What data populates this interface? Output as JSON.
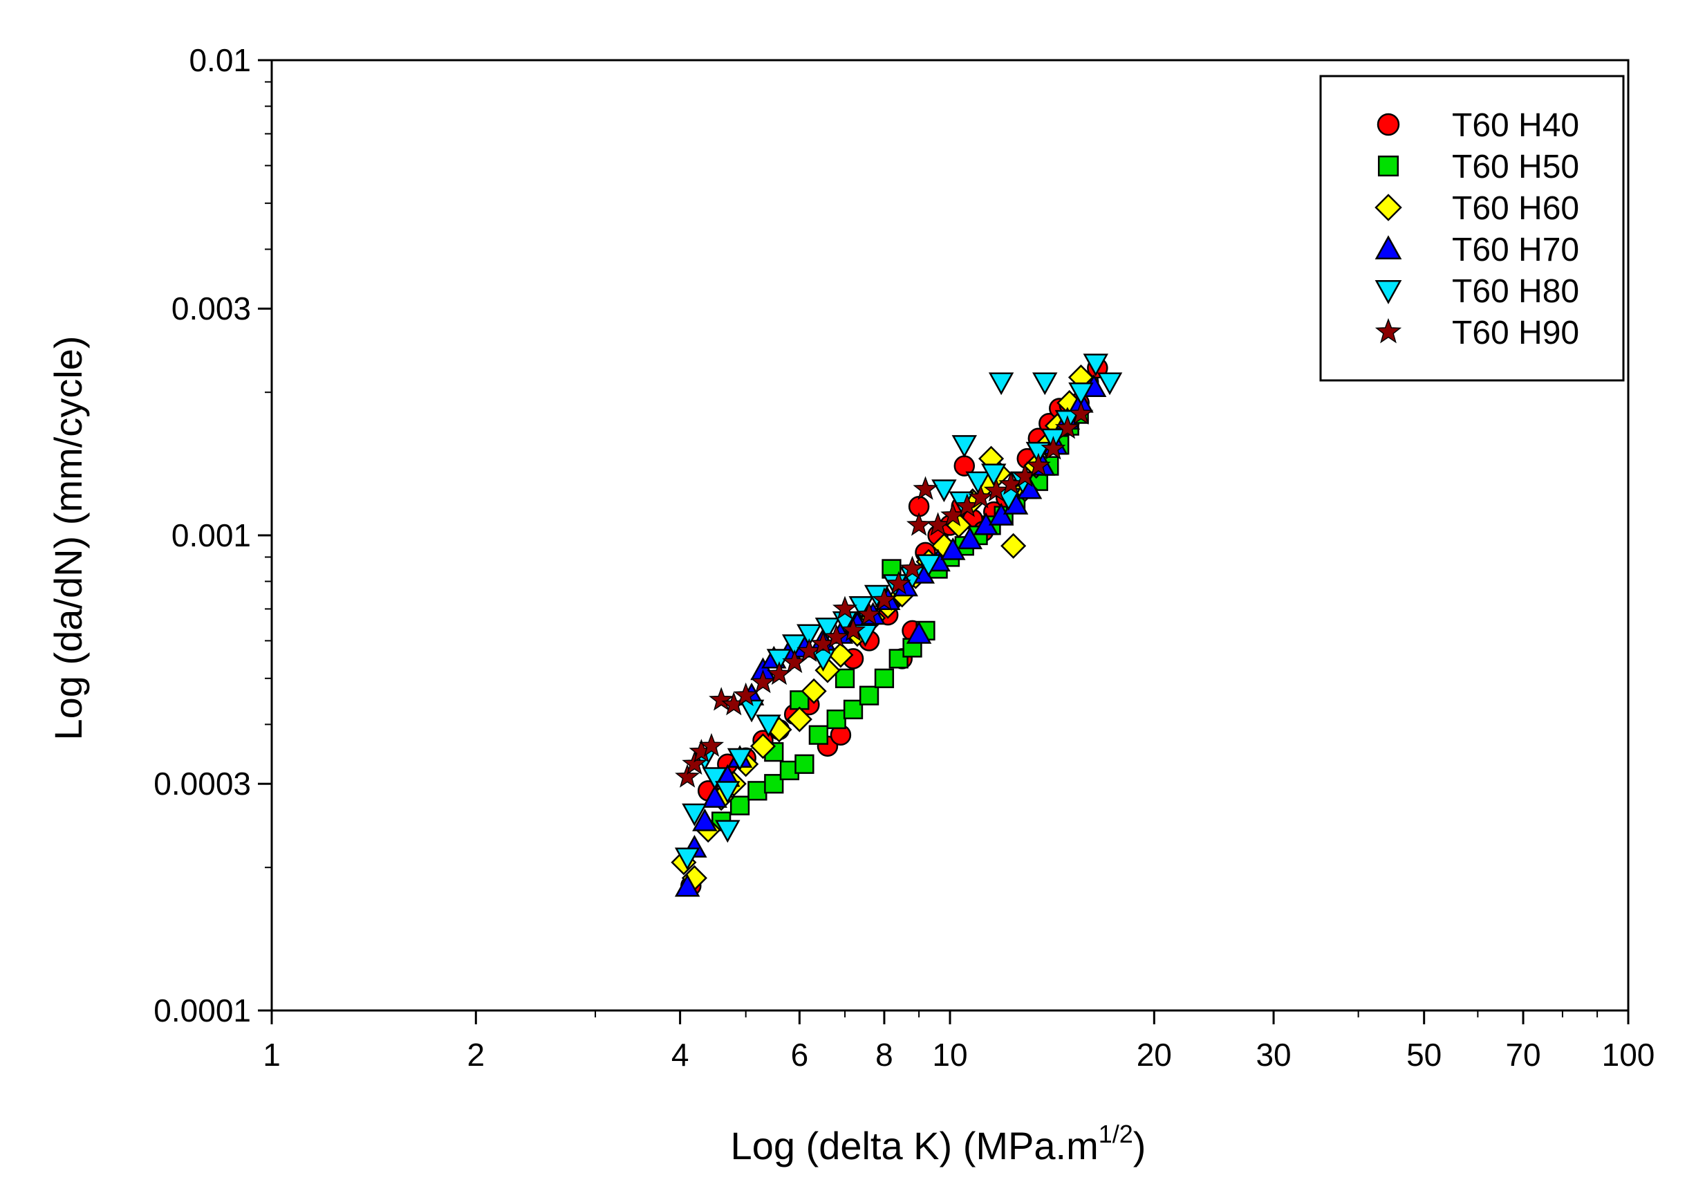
{
  "chart_data": {
    "type": "scatter",
    "xlabel": "Log (delta K) (MPa.m",
    "xlabel_sup": "1/2",
    "xlabel_end": ")",
    "ylabel": "Log (da/dN) (mm/cycle)",
    "x_scale": "log",
    "y_scale": "log",
    "xlim": [
      1,
      100
    ],
    "ylim": [
      0.0001,
      0.01
    ],
    "x_ticks": [
      1,
      2,
      4,
      6,
      8,
      10,
      20,
      30,
      50,
      70,
      100
    ],
    "x_tick_labels": [
      "1",
      "2",
      "4",
      "6",
      "8",
      "10",
      "20",
      "30",
      "50",
      "70",
      "100"
    ],
    "y_ticks": [
      0.0001,
      0.0003,
      0.001,
      0.003,
      0.01
    ],
    "y_tick_labels": [
      "0.0001",
      "0.0003",
      "0.001",
      "0.003",
      "0.01"
    ],
    "grid": false,
    "legend_position": "top-right",
    "series": [
      {
        "name": "T60 H40",
        "marker": "circle",
        "color": "#ff0000",
        "points": [
          [
            4.15,
            0.000183
          ],
          [
            4.4,
            0.00029
          ],
          [
            4.7,
            0.00033
          ],
          [
            5.0,
            0.00034
          ],
          [
            5.3,
            0.00037
          ],
          [
            5.6,
            0.00039
          ],
          [
            5.9,
            0.00042
          ],
          [
            6.2,
            0.00044
          ],
          [
            6.6,
            0.00036
          ],
          [
            6.9,
            0.00038
          ],
          [
            7.2,
            0.00055
          ],
          [
            7.6,
            0.0006
          ],
          [
            8.1,
            0.00068
          ],
          [
            8.5,
            0.00055
          ],
          [
            8.8,
            0.00063
          ],
          [
            9.2,
            0.00092
          ],
          [
            9.6,
            0.001
          ],
          [
            10.0,
            0.00105
          ],
          [
            10.4,
            0.00115
          ],
          [
            10.8,
            0.00108
          ],
          [
            11.2,
            0.00102
          ],
          [
            11.6,
            0.00112
          ],
          [
            12.1,
            0.0012
          ],
          [
            12.6,
            0.00125
          ],
          [
            13.0,
            0.00145
          ],
          [
            13.5,
            0.0016
          ],
          [
            14.0,
            0.00172
          ],
          [
            14.5,
            0.00185
          ],
          [
            15.0,
            0.00188
          ],
          [
            15.5,
            0.0019
          ],
          [
            16.0,
            0.0021
          ],
          [
            16.5,
            0.00225
          ],
          [
            10.5,
            0.0014
          ],
          [
            9.0,
            0.00115
          ]
        ]
      },
      {
        "name": "T60 H50",
        "marker": "square",
        "color": "#00e000",
        "points": [
          [
            4.6,
            0.00025
          ],
          [
            4.9,
            0.00027
          ],
          [
            5.2,
            0.00029
          ],
          [
            5.5,
            0.0003
          ],
          [
            5.8,
            0.00032
          ],
          [
            6.1,
            0.00033
          ],
          [
            6.4,
            0.00038
          ],
          [
            6.8,
            0.00041
          ],
          [
            7.2,
            0.00043
          ],
          [
            7.6,
            0.00046
          ],
          [
            8.0,
            0.0005
          ],
          [
            8.4,
            0.00055
          ],
          [
            8.8,
            0.00058
          ],
          [
            9.2,
            0.00063
          ],
          [
            9.6,
            0.00085
          ],
          [
            10.0,
            0.0009
          ],
          [
            10.5,
            0.00095
          ],
          [
            11.0,
            0.001
          ],
          [
            11.5,
            0.00105
          ],
          [
            12.0,
            0.0011
          ],
          [
            12.5,
            0.00118
          ],
          [
            13.0,
            0.00125
          ],
          [
            13.5,
            0.0013
          ],
          [
            14.0,
            0.0014
          ],
          [
            14.5,
            0.00155
          ],
          [
            15.0,
            0.0017
          ],
          [
            15.5,
            0.0018
          ],
          [
            5.5,
            0.00035
          ],
          [
            6.0,
            0.00045
          ],
          [
            7.0,
            0.0005
          ],
          [
            8.2,
            0.00085
          ]
        ]
      },
      {
        "name": "T60 H60",
        "marker": "diamond",
        "color": "#ffff00",
        "points": [
          [
            4.05,
            0.000205
          ],
          [
            4.2,
            0.00019
          ],
          [
            4.4,
            0.00024
          ],
          [
            4.6,
            0.00028
          ],
          [
            4.8,
            0.0003
          ],
          [
            5.0,
            0.00033
          ],
          [
            5.3,
            0.00036
          ],
          [
            5.6,
            0.00039
          ],
          [
            6.0,
            0.00041
          ],
          [
            6.3,
            0.00047
          ],
          [
            6.6,
            0.00052
          ],
          [
            6.9,
            0.00056
          ],
          [
            7.3,
            0.00062
          ],
          [
            7.7,
            0.00067
          ],
          [
            8.1,
            0.00071
          ],
          [
            8.5,
            0.00075
          ],
          [
            8.9,
            0.00082
          ],
          [
            9.3,
            0.00088
          ],
          [
            9.8,
            0.00095
          ],
          [
            10.3,
            0.00105
          ],
          [
            10.8,
            0.00118
          ],
          [
            11.3,
            0.00128
          ],
          [
            11.8,
            0.00135
          ],
          [
            12.4,
            0.00095
          ],
          [
            12.9,
            0.00125
          ],
          [
            13.4,
            0.0014
          ],
          [
            13.9,
            0.00155
          ],
          [
            14.4,
            0.0017
          ],
          [
            15.0,
            0.0019
          ],
          [
            15.6,
            0.00215
          ],
          [
            11.5,
            0.00145
          ]
        ]
      },
      {
        "name": "T60 H70",
        "marker": "triangle-up",
        "color": "#0000ff",
        "points": [
          [
            4.1,
            0.000182
          ],
          [
            4.2,
            0.00022
          ],
          [
            4.35,
            0.00025
          ],
          [
            4.5,
            0.00028
          ],
          [
            4.7,
            0.00031
          ],
          [
            4.9,
            0.00034
          ],
          [
            5.1,
            0.00046
          ],
          [
            5.3,
            0.00052
          ],
          [
            5.5,
            0.00055
          ],
          [
            5.8,
            0.00057
          ],
          [
            6.1,
            0.00058
          ],
          [
            6.5,
            0.0006
          ],
          [
            6.9,
            0.00062
          ],
          [
            7.3,
            0.00065
          ],
          [
            7.7,
            0.00068
          ],
          [
            8.1,
            0.00073
          ],
          [
            8.6,
            0.00078
          ],
          [
            9.1,
            0.00083
          ],
          [
            9.6,
            0.00088
          ],
          [
            10.1,
            0.00093
          ],
          [
            10.7,
            0.00098
          ],
          [
            11.3,
            0.00105
          ],
          [
            11.9,
            0.0011
          ],
          [
            12.5,
            0.00116
          ],
          [
            13.1,
            0.00125
          ],
          [
            13.7,
            0.0014
          ],
          [
            14.3,
            0.00155
          ],
          [
            14.9,
            0.00175
          ],
          [
            15.6,
            0.0019
          ],
          [
            16.3,
            0.00205
          ],
          [
            9.0,
            0.00062
          ]
        ]
      },
      {
        "name": "T60 H80",
        "marker": "triangle-down",
        "color": "#00e5ff",
        "points": [
          [
            4.1,
            0.00021
          ],
          [
            4.2,
            0.00026
          ],
          [
            4.35,
            0.00034
          ],
          [
            4.5,
            0.00031
          ],
          [
            4.7,
            0.00029
          ],
          [
            4.9,
            0.00034
          ],
          [
            5.1,
            0.00043
          ],
          [
            5.4,
            0.0004
          ],
          [
            5.6,
            0.00055
          ],
          [
            5.9,
            0.00059
          ],
          [
            6.2,
            0.00062
          ],
          [
            6.6,
            0.00064
          ],
          [
            7.0,
            0.00066
          ],
          [
            7.4,
            0.00071
          ],
          [
            7.8,
            0.00075
          ],
          [
            8.3,
            0.00079
          ],
          [
            8.8,
            0.00082
          ],
          [
            9.3,
            0.00087
          ],
          [
            9.8,
            0.00125
          ],
          [
            10.4,
            0.00118
          ],
          [
            11.0,
            0.0013
          ],
          [
            11.6,
            0.00135
          ],
          [
            12.2,
            0.0012
          ],
          [
            12.8,
            0.0013
          ],
          [
            13.5,
            0.0015
          ],
          [
            14.2,
            0.0016
          ],
          [
            14.9,
            0.00175
          ],
          [
            15.6,
            0.002
          ],
          [
            16.4,
            0.0023
          ],
          [
            17.2,
            0.0021
          ],
          [
            11.9,
            0.0021
          ],
          [
            13.8,
            0.0021
          ],
          [
            10.5,
            0.00155
          ],
          [
            6.5,
            0.00055
          ],
          [
            7.5,
            0.00062
          ],
          [
            4.7,
            0.00024
          ]
        ]
      },
      {
        "name": "T60 H90",
        "marker": "star",
        "color": "#8b0000",
        "points": [
          [
            4.1,
            0.00031
          ],
          [
            4.2,
            0.00033
          ],
          [
            4.3,
            0.00035
          ],
          [
            4.45,
            0.00036
          ],
          [
            4.6,
            0.00045
          ],
          [
            4.8,
            0.00044
          ],
          [
            5.0,
            0.00046
          ],
          [
            5.3,
            0.00049
          ],
          [
            5.6,
            0.00051
          ],
          [
            5.9,
            0.00054
          ],
          [
            6.2,
            0.00057
          ],
          [
            6.5,
            0.00059
          ],
          [
            6.8,
            0.00061
          ],
          [
            7.2,
            0.00063
          ],
          [
            7.6,
            0.00068
          ],
          [
            8.0,
            0.00073
          ],
          [
            8.4,
            0.00079
          ],
          [
            8.8,
            0.00085
          ],
          [
            9.2,
            0.00125
          ],
          [
            9.6,
            0.00105
          ],
          [
            10.1,
            0.0011
          ],
          [
            10.6,
            0.00115
          ],
          [
            11.1,
            0.0012
          ],
          [
            11.7,
            0.00124
          ],
          [
            12.3,
            0.00128
          ],
          [
            12.9,
            0.00133
          ],
          [
            13.5,
            0.0014
          ],
          [
            14.2,
            0.00152
          ],
          [
            14.9,
            0.00168
          ],
          [
            15.6,
            0.0018
          ],
          [
            7.0,
            0.0007
          ],
          [
            9.0,
            0.00105
          ]
        ]
      }
    ]
  }
}
